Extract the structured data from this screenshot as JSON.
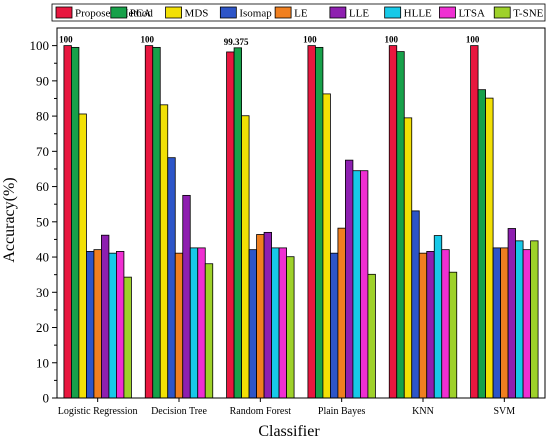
{
  "chart_data": {
    "type": "bar",
    "title": "",
    "xlabel": "Classifier",
    "ylabel": "Accuracy(%)",
    "ylim": [
      0,
      105
    ],
    "yticks": [
      0,
      10,
      20,
      30,
      40,
      50,
      60,
      70,
      80,
      90,
      100
    ],
    "grid": false,
    "legend_position": "top",
    "categories": [
      "Logistic Regression",
      "Decision Tree",
      "Random Forest",
      "Plain Bayes",
      "KNN",
      "SVM"
    ],
    "series": [
      {
        "name": "Proposed Method",
        "color": "#e8173f",
        "values": [
          100,
          100,
          98.2,
          100,
          100,
          100
        ]
      },
      {
        "name": "PCA",
        "color": "#17a14a",
        "values": [
          99.5,
          99.5,
          99.375,
          99.5,
          98.3,
          87.5
        ]
      },
      {
        "name": "MDS",
        "color": "#f2e005",
        "values": [
          80.6,
          83.2,
          80.1,
          86.3,
          79.5,
          85.1
        ]
      },
      {
        "name": "Isomap",
        "color": "#2d55c8",
        "values": [
          41.6,
          68.2,
          42.1,
          41.1,
          53.1,
          42.6
        ]
      },
      {
        "name": "LE",
        "color": "#f07f1f",
        "values": [
          42.1,
          41.1,
          46.4,
          48.2,
          41.1,
          42.6
        ]
      },
      {
        "name": "LLE",
        "color": "#8e1fb0",
        "values": [
          46.2,
          57.5,
          47.0,
          67.5,
          41.6,
          48.1
        ]
      },
      {
        "name": "HLLE",
        "color": "#17c9e8",
        "values": [
          41.1,
          42.6,
          42.6,
          64.5,
          46.1,
          44.6
        ]
      },
      {
        "name": "LTSA",
        "color": "#ef2fd2",
        "values": [
          41.6,
          42.6,
          42.6,
          64.5,
          42.1,
          42.1
        ]
      },
      {
        "name": "T-SNE",
        "color": "#9ed12a",
        "values": [
          34.3,
          38.1,
          40.1,
          35.1,
          35.7,
          44.6
        ]
      }
    ],
    "annotations": [
      {
        "category": "Logistic Regression",
        "series": "Proposed Method",
        "text": "100"
      },
      {
        "category": "Decision Tree",
        "series": "Proposed Method",
        "text": "100"
      },
      {
        "category": "Random Forest",
        "series": "PCA",
        "text": "99.375"
      },
      {
        "category": "Plain Bayes",
        "series": "Proposed Method",
        "text": "100"
      },
      {
        "category": "KNN",
        "series": "Proposed Method",
        "text": "100"
      },
      {
        "category": "SVM",
        "series": "Proposed Method",
        "text": "100"
      }
    ]
  }
}
